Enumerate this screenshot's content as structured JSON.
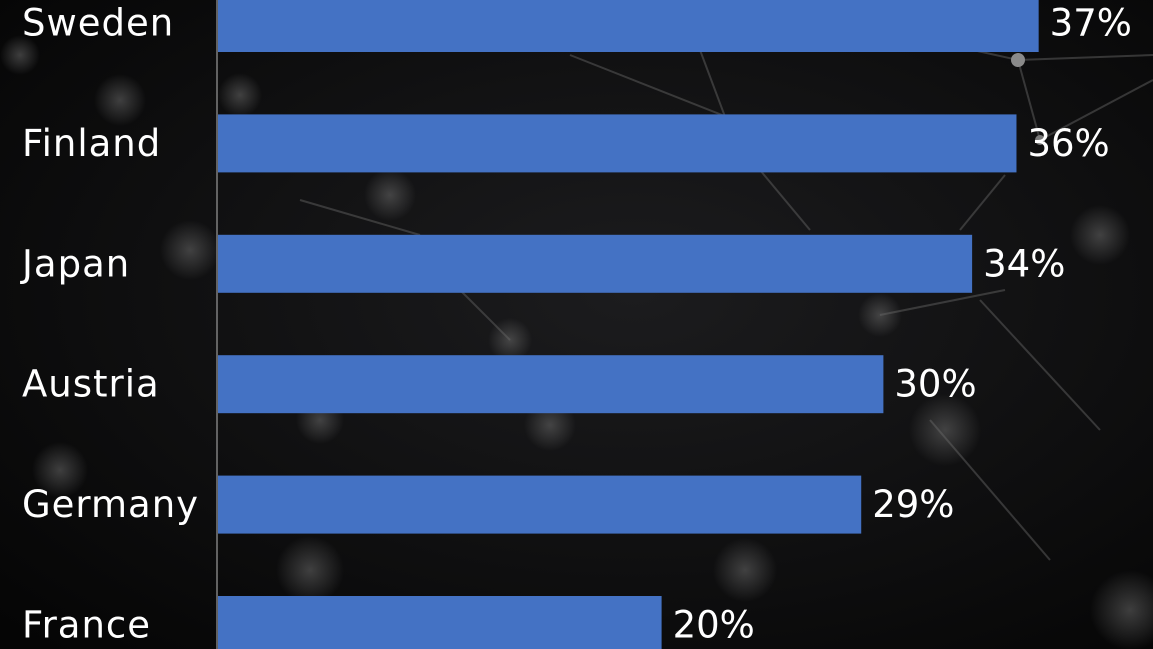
{
  "chart_data": {
    "type": "bar",
    "orientation": "horizontal",
    "categories": [
      "Sweden",
      "Finland",
      "Japan",
      "Austria",
      "Germany",
      "France"
    ],
    "values": [
      37,
      36,
      34,
      30,
      29,
      20
    ],
    "value_labels": [
      "37%",
      "36%",
      "34%",
      "30%",
      "29%",
      "20%"
    ],
    "unit": "%",
    "xlim": [
      0,
      40
    ],
    "grid": false,
    "legend": "none",
    "bar_color": "#4472c4",
    "label_color": "#ffffff",
    "axis_color": "#7f7f7f"
  }
}
